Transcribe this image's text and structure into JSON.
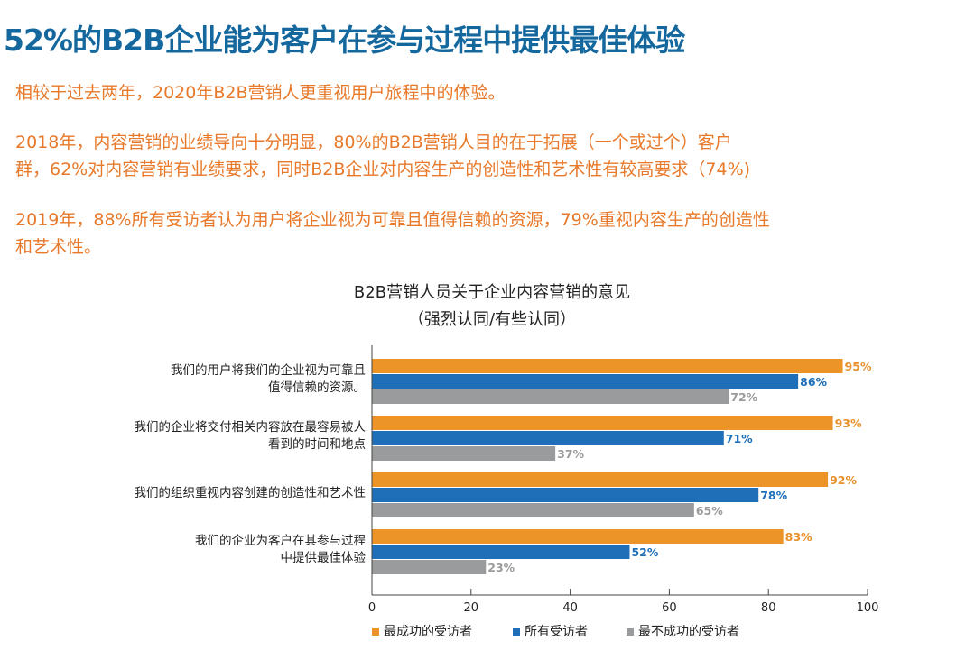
{
  "title": "52%的B2B企业能为客户在参与过程中提供最佳体验",
  "paragraphs": [
    [
      "相较于过去两年，2020年B2B营销人更重视用户旅程中的体验。"
    ],
    [
      "2018年，内容营销的业绩导向十分明显，80%的B2B营销人目的在于拓展（一个或过个）客户",
      "群，62%对内容营销有业绩要求，同时B2B企业对内容生产的创造性和艺术性有较高要求（74%)"
    ],
    [
      "2019年，88%所有受访者认为用户将企业视为可靠且值得信赖的资源，79%重视内容生产的创造性",
      "和艺术性。"
    ]
  ],
  "chart_data": {
    "type": "bar",
    "orientation": "horizontal",
    "title": "B2B营销人员关于企业内容营销的意见",
    "subtitle": "（强烈认同/有些认同）",
    "categories": [
      [
        "我们的用户将我们的企业视为可靠且",
        "值得信赖的资源。"
      ],
      [
        "我们的企业将交付相关内容放在最容易被人",
        "看到的时间和地点"
      ],
      [
        "我们的组织重视内容创建的创造性和艺术性"
      ],
      [
        "我们的企业为客户在其参与过程",
        "中提供最佳体验"
      ]
    ],
    "series": [
      {
        "name": "最成功的受访者",
        "color": "#ec9427",
        "label_color": "#e8912a",
        "values": [
          95,
          93,
          92,
          83
        ],
        "labels": [
          "95%",
          "93%",
          "92%",
          "83%"
        ]
      },
      {
        "name": "所有受访者",
        "color": "#1f6fb8",
        "label_color": "#1f6fb8",
        "values": [
          86,
          71,
          78,
          52
        ],
        "labels": [
          "86%",
          "71%",
          "78%",
          "52%"
        ]
      },
      {
        "name": "最不成功的受访者",
        "color": "#9a9b9d",
        "label_color": "#9a9b9d",
        "values": [
          72,
          37,
          65,
          23
        ],
        "labels": [
          "72%",
          "37%",
          "65%",
          "23%"
        ]
      }
    ],
    "xlim": [
      0,
      100
    ],
    "xticks": [
      "0",
      "20",
      "40",
      "60",
      "80",
      "100"
    ],
    "legend": "bottom",
    "grid": false
  }
}
